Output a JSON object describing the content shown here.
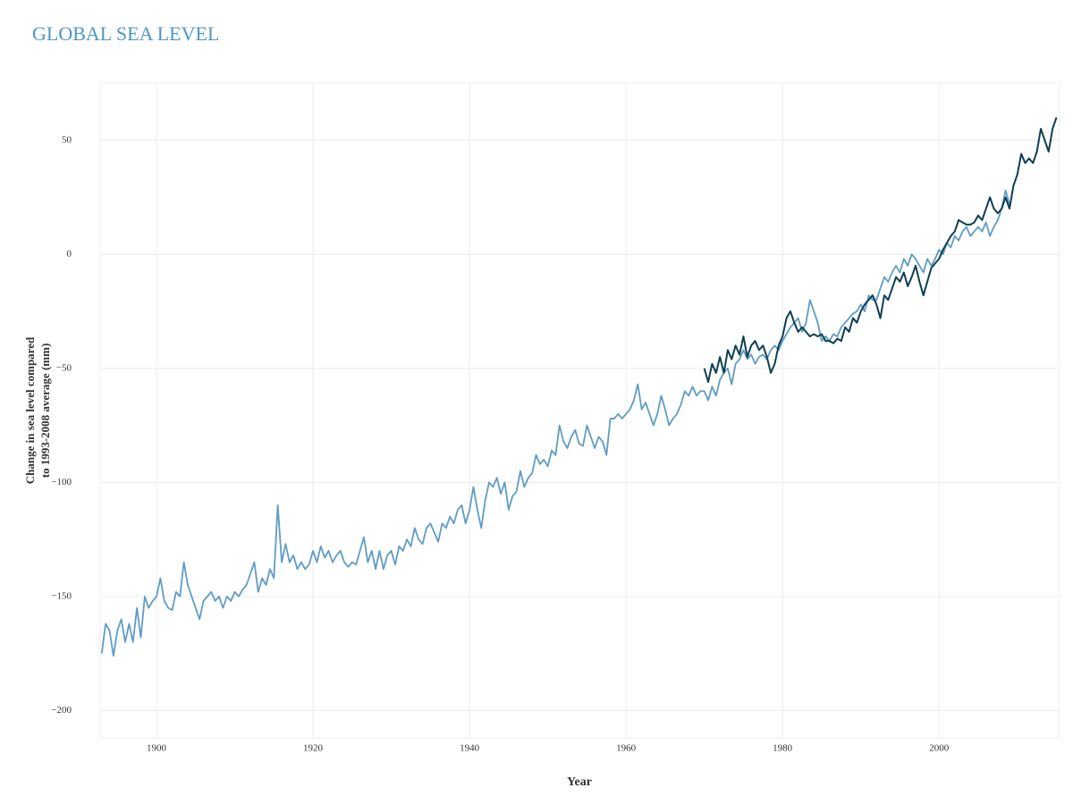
{
  "chart_data": {
    "type": "line",
    "title": "GLOBAL SEA LEVEL",
    "y_label": [
      "Change in sea level compared",
      "to 1993-2008 average (mm)"
    ],
    "x_label": "Year",
    "xlim": [
      1892.8,
      2015.4
    ],
    "xticks": [
      1900,
      1920,
      1940,
      1960,
      1980,
      2000
    ],
    "ylim": [
      -212,
      75
    ],
    "yticks": [
      {
        "value": -200,
        "label": "−200"
      },
      {
        "value": -150,
        "label": "−150"
      },
      {
        "value": -100,
        "label": "−100"
      },
      {
        "value": -50,
        "label": "−50"
      },
      0,
      50
    ],
    "grid": true,
    "series": [
      {
        "color": "#5f9cc5",
        "x": [
          1893,
          1893.5,
          1894,
          1894.5,
          1895,
          1895.5,
          1896,
          1896.5,
          1897,
          1897.5,
          1898,
          1898.5,
          1899,
          1899.5,
          1900,
          1900.5,
          1901,
          1901.5,
          1902,
          1902.5,
          1903,
          1903.5,
          1904,
          1904.5,
          1905,
          1905.5,
          1906,
          1906.5,
          1907,
          1907.5,
          1908,
          1908.5,
          1909,
          1909.5,
          1910,
          1910.5,
          1911,
          1911.5,
          1912,
          1912.5,
          1913,
          1913.5,
          1914,
          1914.5,
          1915,
          1915.5,
          1916,
          1916.5,
          1917,
          1917.5,
          1918,
          1918.5,
          1919,
          1919.5,
          1920,
          1920.5,
          1921,
          1921.5,
          1922,
          1922.5,
          1923,
          1923.5,
          1924,
          1924.5,
          1925,
          1925.5,
          1926,
          1926.5,
          1927,
          1927.5,
          1928,
          1928.5,
          1929,
          1929.5,
          1930,
          1930.5,
          1931,
          1931.5,
          1932,
          1932.5,
          1933,
          1933.5,
          1934,
          1934.5,
          1935,
          1935.5,
          1936,
          1936.5,
          1937,
          1937.5,
          1938,
          1938.5,
          1939,
          1939.5,
          1940,
          1940.5,
          1941,
          1941.5,
          1942,
          1942.5,
          1943,
          1943.5,
          1944,
          1944.5,
          1945,
          1945.5,
          1946,
          1946.5,
          1947,
          1947.5,
          1948,
          1948.5,
          1949,
          1949.5,
          1950,
          1950.5,
          1951,
          1951.5,
          1952,
          1952.5,
          1953,
          1953.5,
          1954,
          1954.5,
          1955,
          1955.5,
          1956,
          1956.5,
          1957,
          1957.5,
          1958,
          1958.5,
          1959,
          1959.5,
          1960,
          1960.5,
          1961,
          1961.5,
          1962,
          1962.5,
          1963,
          1963.5,
          1964,
          1964.5,
          1965,
          1965.5,
          1966,
          1966.5,
          1967,
          1967.5,
          1968,
          1968.5,
          1969,
          1969.5,
          1970,
          1970.5,
          1971,
          1971.5,
          1972,
          1972.5,
          1973,
          1973.5,
          1974,
          1974.5,
          1975,
          1975.5,
          1976,
          1976.5,
          1977,
          1977.5,
          1978,
          1978.5,
          1979,
          1979.5,
          1980,
          1980.5,
          1981,
          1981.5,
          1982,
          1982.5,
          1983,
          1983.5,
          1984,
          1984.5,
          1985,
          1985.5,
          1986,
          1986.5,
          1987,
          1987.5,
          1988,
          1988.5,
          1989,
          1989.5,
          1990,
          1990.5,
          1991,
          1991.5,
          1992,
          1992.5,
          1993,
          1993.5,
          1994,
          1994.5,
          1995,
          1995.5,
          1996,
          1996.5,
          1997,
          1997.5,
          1998,
          1998.5,
          1999,
          1999.5,
          2000,
          2000.5,
          2001,
          2001.5,
          2002,
          2002.5,
          2003,
          2003.5,
          2004,
          2004.5,
          2005,
          2005.5,
          2006,
          2006.5,
          2007,
          2007.5,
          2008,
          2008.5,
          2009
        ],
        "values": [
          -175,
          -162,
          -165,
          -176,
          -165,
          -160,
          -170,
          -162,
          -170,
          -155,
          -168,
          -150,
          -155,
          -152,
          -150,
          -142,
          -152,
          -155,
          -156,
          -148,
          -150,
          -135,
          -145,
          -150,
          -155,
          -160,
          -152,
          -150,
          -148,
          -152,
          -150,
          -155,
          -150,
          -152,
          -148,
          -150,
          -147,
          -145,
          -140,
          -135,
          -148,
          -142,
          -145,
          -138,
          -142,
          -110,
          -135,
          -127,
          -135,
          -132,
          -138,
          -135,
          -138,
          -136,
          -130,
          -135,
          -128,
          -133,
          -130,
          -135,
          -132,
          -130,
          -135,
          -137,
          -135,
          -136,
          -130,
          -124,
          -135,
          -130,
          -138,
          -130,
          -138,
          -132,
          -130,
          -136,
          -128,
          -130,
          -125,
          -128,
          -120,
          -125,
          -127,
          -120,
          -118,
          -122,
          -126,
          -118,
          -120,
          -115,
          -118,
          -112,
          -110,
          -118,
          -112,
          -102,
          -112,
          -120,
          -108,
          -100,
          -102,
          -98,
          -105,
          -100,
          -112,
          -106,
          -104,
          -95,
          -102,
          -98,
          -96,
          -88,
          -92,
          -90,
          -93,
          -86,
          -88,
          -75,
          -82,
          -85,
          -80,
          -77,
          -83,
          -84,
          -75,
          -80,
          -85,
          -80,
          -82,
          -88,
          -72,
          -72,
          -70,
          -72,
          -70,
          -68,
          -64,
          -57,
          -68,
          -65,
          -70,
          -75,
          -70,
          -62,
          -68,
          -75,
          -72,
          -70,
          -66,
          -60,
          -62,
          -58,
          -62,
          -60,
          -60,
          -64,
          -58,
          -62,
          -55,
          -52,
          -50,
          -57,
          -48,
          -46,
          -42,
          -46,
          -44,
          -48,
          -45,
          -44,
          -46,
          -42,
          -40,
          -42,
          -38,
          -35,
          -32,
          -30,
          -28,
          -34,
          -30,
          -20,
          -25,
          -30,
          -38,
          -36,
          -38,
          -35,
          -36,
          -32,
          -30,
          -28,
          -26,
          -25,
          -22,
          -25,
          -18,
          -20,
          -20,
          -15,
          -10,
          -12,
          -8,
          -5,
          -8,
          -2,
          -5,
          0,
          -2,
          -5,
          -8,
          -2,
          -5,
          -2,
          2,
          0,
          5,
          3,
          8,
          6,
          10,
          12,
          8,
          10,
          12,
          10,
          14,
          8,
          12,
          15,
          20,
          28,
          22
        ]
      },
      {
        "color": "#0d3f52",
        "x": [
          1970,
          1970.5,
          1971,
          1971.5,
          1972,
          1972.5,
          1973,
          1973.5,
          1974,
          1974.5,
          1975,
          1975.5,
          1976,
          1976.5,
          1977,
          1977.5,
          1978,
          1978.5,
          1979,
          1979.5,
          1980,
          1980.5,
          1981,
          1981.5,
          1982,
          1982.5,
          1983,
          1983.5,
          1984,
          1984.5,
          1985,
          1985.5,
          1986,
          1986.5,
          1987,
          1987.5,
          1988,
          1988.5,
          1989,
          1989.5,
          1990,
          1990.5,
          1991,
          1991.5,
          1992,
          1992.5,
          1993,
          1993.5,
          1994,
          1994.5,
          1995,
          1995.5,
          1996,
          1996.5,
          1997,
          1997.5,
          1998,
          1998.5,
          1999,
          1999.5,
          2000,
          2000.5,
          2001,
          2001.5,
          2002,
          2002.5,
          2003,
          2003.5,
          2004,
          2004.5,
          2005,
          2005.5,
          2006,
          2006.5,
          2007,
          2007.5,
          2008,
          2008.5,
          2009,
          2009.5,
          2010,
          2010.5,
          2011,
          2011.5,
          2012,
          2012.5,
          2013,
          2013.5,
          2014,
          2014.5,
          2015
        ],
        "values": [
          -50,
          -56,
          -48,
          -52,
          -45,
          -52,
          -42,
          -46,
          -40,
          -44,
          -36,
          -45,
          -40,
          -38,
          -42,
          -40,
          -45,
          -52,
          -48,
          -40,
          -36,
          -28,
          -25,
          -30,
          -34,
          -32,
          -34,
          -36,
          -35,
          -36,
          -35,
          -38,
          -38,
          -39,
          -37,
          -38,
          -32,
          -34,
          -28,
          -30,
          -25,
          -22,
          -20,
          -18,
          -22,
          -28,
          -18,
          -20,
          -15,
          -10,
          -12,
          -8,
          -14,
          -10,
          -5,
          -12,
          -18,
          -12,
          -6,
          -4,
          -2,
          2,
          5,
          8,
          10,
          15,
          14,
          13,
          13,
          14,
          17,
          15,
          20,
          25,
          20,
          18,
          20,
          25,
          20,
          30,
          35,
          44,
          40,
          42,
          40,
          45,
          55,
          50,
          45,
          55,
          60
        ]
      }
    ]
  }
}
